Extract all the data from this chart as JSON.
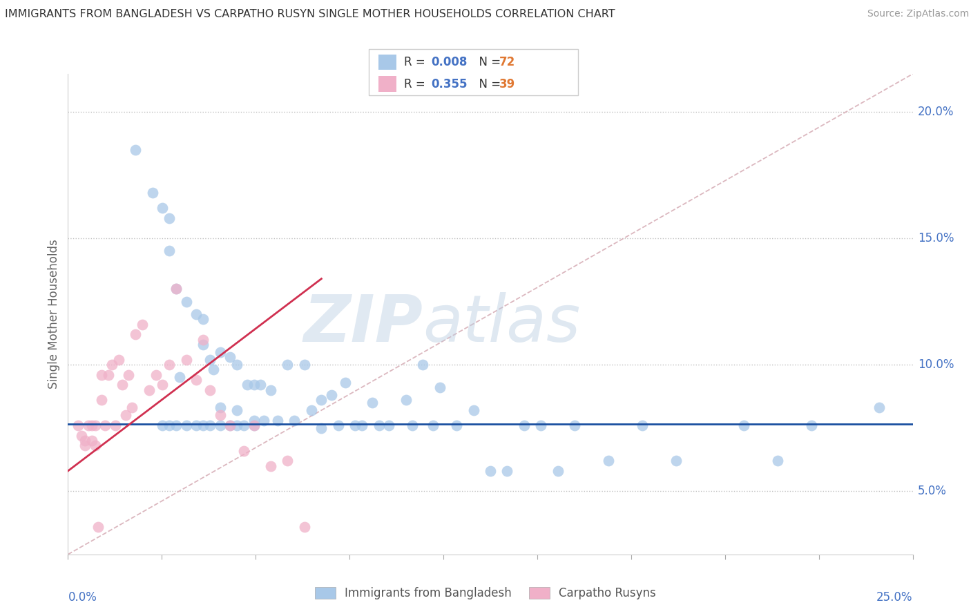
{
  "title": "IMMIGRANTS FROM BANGLADESH VS CARPATHO RUSYN SINGLE MOTHER HOUSEHOLDS CORRELATION CHART",
  "source": "Source: ZipAtlas.com",
  "ylabel": "Single Mother Households",
  "xlim": [
    0.0,
    0.25
  ],
  "ylim": [
    0.025,
    0.215
  ],
  "ytick_values": [
    0.05,
    0.1,
    0.15,
    0.2
  ],
  "color_blue": "#a8c8e8",
  "color_pink": "#f0b0c8",
  "color_blue_line": "#1a4fa0",
  "color_pink_line": "#d03050",
  "color_diag": "#d8b0b8",
  "watermark_zip": "ZIP",
  "watermark_atlas": "atlas",
  "blue_x": [
    0.02,
    0.025,
    0.028,
    0.03,
    0.03,
    0.032,
    0.033,
    0.035,
    0.038,
    0.04,
    0.04,
    0.042,
    0.043,
    0.045,
    0.045,
    0.048,
    0.05,
    0.05,
    0.053,
    0.055,
    0.055,
    0.057,
    0.058,
    0.06,
    0.062,
    0.065,
    0.067,
    0.07,
    0.072,
    0.075,
    0.075,
    0.078,
    0.08,
    0.082,
    0.085,
    0.087,
    0.09,
    0.092,
    0.095,
    0.1,
    0.102,
    0.105,
    0.108,
    0.11,
    0.115,
    0.12,
    0.125,
    0.13,
    0.135,
    0.14,
    0.145,
    0.15,
    0.16,
    0.17,
    0.18,
    0.2,
    0.21,
    0.22,
    0.24,
    0.028,
    0.03,
    0.032,
    0.035,
    0.038,
    0.04,
    0.042,
    0.045,
    0.048,
    0.05,
    0.052,
    0.055
  ],
  "blue_y": [
    0.185,
    0.168,
    0.162,
    0.158,
    0.145,
    0.13,
    0.095,
    0.125,
    0.12,
    0.118,
    0.108,
    0.102,
    0.098,
    0.105,
    0.083,
    0.103,
    0.1,
    0.082,
    0.092,
    0.092,
    0.078,
    0.092,
    0.078,
    0.09,
    0.078,
    0.1,
    0.078,
    0.1,
    0.082,
    0.086,
    0.075,
    0.088,
    0.076,
    0.093,
    0.076,
    0.076,
    0.085,
    0.076,
    0.076,
    0.086,
    0.076,
    0.1,
    0.076,
    0.091,
    0.076,
    0.082,
    0.058,
    0.058,
    0.076,
    0.076,
    0.058,
    0.076,
    0.062,
    0.076,
    0.062,
    0.076,
    0.062,
    0.076,
    0.083,
    0.076,
    0.076,
    0.076,
    0.076,
    0.076,
    0.076,
    0.076,
    0.076,
    0.076,
    0.076,
    0.076,
    0.076
  ],
  "pink_x": [
    0.003,
    0.004,
    0.005,
    0.005,
    0.006,
    0.007,
    0.007,
    0.008,
    0.008,
    0.009,
    0.01,
    0.01,
    0.011,
    0.012,
    0.013,
    0.014,
    0.015,
    0.016,
    0.017,
    0.018,
    0.019,
    0.02,
    0.022,
    0.024,
    0.026,
    0.028,
    0.03,
    0.032,
    0.035,
    0.038,
    0.04,
    0.042,
    0.045,
    0.048,
    0.052,
    0.055,
    0.06,
    0.065,
    0.07
  ],
  "pink_y": [
    0.076,
    0.072,
    0.07,
    0.068,
    0.076,
    0.076,
    0.07,
    0.076,
    0.068,
    0.036,
    0.096,
    0.086,
    0.076,
    0.096,
    0.1,
    0.076,
    0.102,
    0.092,
    0.08,
    0.096,
    0.083,
    0.112,
    0.116,
    0.09,
    0.096,
    0.092,
    0.1,
    0.13,
    0.102,
    0.094,
    0.11,
    0.09,
    0.08,
    0.076,
    0.066,
    0.076,
    0.06,
    0.062,
    0.036
  ],
  "blue_hline_y": 0.0765,
  "pink_line_x0": 0.0,
  "pink_line_x1": 0.075,
  "pink_line_y0": 0.058,
  "pink_line_y1": 0.134
}
